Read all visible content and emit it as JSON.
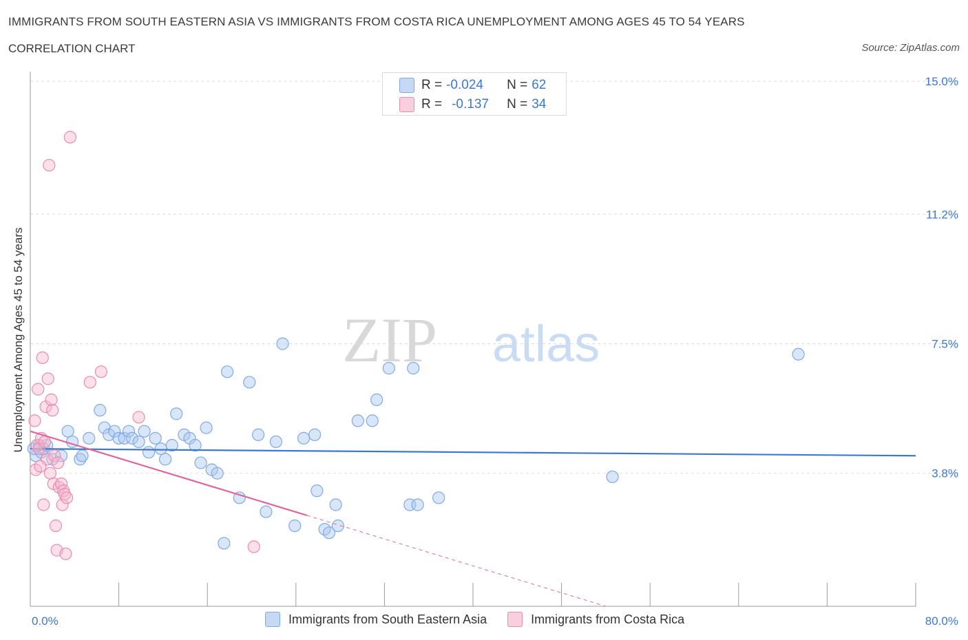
{
  "header": {
    "title": "IMMIGRANTS FROM SOUTH EASTERN ASIA VS IMMIGRANTS FROM COSTA RICA UNEMPLOYMENT AMONG AGES 45 TO 54 YEARS",
    "subtitle": "CORRELATION CHART",
    "source": "Source: ZipAtlas.com"
  },
  "legend": {
    "r_label": "R =",
    "n_label": "N =",
    "blue": {
      "r": "-0.024",
      "n": "62"
    },
    "pink": {
      "r": "-0.137",
      "n": "34"
    }
  },
  "watermark": {
    "zip": "ZIP",
    "atlas": "atlas"
  },
  "colors": {
    "blue": "#3b78d0",
    "blue_fill": "#c5d9f5",
    "pink": "#e0669a",
    "pink_fill": "#f9cfdd",
    "grid": "#dddddd"
  },
  "chart_data": {
    "type": "scatter",
    "title": "IMMIGRANTS FROM SOUTH EASTERN ASIA VS IMMIGRANTS FROM COSTA RICA UNEMPLOYMENT AMONG AGES 45 TO 54 YEARS",
    "xlabel": "",
    "ylabel": "Unemployment Among Ages 45 to 54 years",
    "xlim": [
      0,
      80
    ],
    "ylim": [
      0,
      15
    ],
    "x_tick_labels": [
      "0.0%",
      "80.0%"
    ],
    "y_ticks": [
      {
        "value": 15.0,
        "label": "15.0%"
      },
      {
        "value": 11.2,
        "label": "11.2%"
      },
      {
        "value": 7.5,
        "label": "7.5%"
      },
      {
        "value": 3.8,
        "label": "3.8%"
      }
    ],
    "series": [
      {
        "name": "Immigrants from South Eastern Asia",
        "color": "blue",
        "r": -0.024,
        "n": 62,
        "trend": {
          "x": [
            0,
            80
          ],
          "y": [
            4.5,
            4.3
          ],
          "dashed_from": null
        },
        "points": [
          [
            0.5,
            4.3
          ],
          [
            0.8,
            4.6
          ],
          [
            1.0,
            4.4
          ],
          [
            1.2,
            4.5
          ],
          [
            1.5,
            4.6
          ],
          [
            2.0,
            4.2
          ],
          [
            2.8,
            4.3
          ],
          [
            3.4,
            5.0
          ],
          [
            3.8,
            4.7
          ],
          [
            4.5,
            4.2
          ],
          [
            4.7,
            4.3
          ],
          [
            5.3,
            4.8
          ],
          [
            6.3,
            5.6
          ],
          [
            6.7,
            5.1
          ],
          [
            7.1,
            4.9
          ],
          [
            7.6,
            5.0
          ],
          [
            8.0,
            4.8
          ],
          [
            8.5,
            4.8
          ],
          [
            8.9,
            5.0
          ],
          [
            9.2,
            4.8
          ],
          [
            9.8,
            4.7
          ],
          [
            10.3,
            5.0
          ],
          [
            10.7,
            4.4
          ],
          [
            11.3,
            4.8
          ],
          [
            11.8,
            4.5
          ],
          [
            12.2,
            4.2
          ],
          [
            12.8,
            4.6
          ],
          [
            13.2,
            5.5
          ],
          [
            13.9,
            4.9
          ],
          [
            14.4,
            4.8
          ],
          [
            14.9,
            4.6
          ],
          [
            15.4,
            4.1
          ],
          [
            15.9,
            5.1
          ],
          [
            16.4,
            3.9
          ],
          [
            16.9,
            3.8
          ],
          [
            17.5,
            1.8
          ],
          [
            17.8,
            6.7
          ],
          [
            18.9,
            3.1
          ],
          [
            19.8,
            6.4
          ],
          [
            20.6,
            4.9
          ],
          [
            21.3,
            2.7
          ],
          [
            22.2,
            4.7
          ],
          [
            22.8,
            7.5
          ],
          [
            23.9,
            2.3
          ],
          [
            24.7,
            4.8
          ],
          [
            25.7,
            4.9
          ],
          [
            25.9,
            3.3
          ],
          [
            26.6,
            2.2
          ],
          [
            27.0,
            2.1
          ],
          [
            27.6,
            2.9
          ],
          [
            27.8,
            2.3
          ],
          [
            29.6,
            5.3
          ],
          [
            30.9,
            5.3
          ],
          [
            31.3,
            5.9
          ],
          [
            32.4,
            6.8
          ],
          [
            34.3,
            2.9
          ],
          [
            34.6,
            6.8
          ],
          [
            35.0,
            2.9
          ],
          [
            36.9,
            3.1
          ],
          [
            52.6,
            3.7
          ],
          [
            69.4,
            7.2
          ],
          [
            0.3,
            4.5
          ]
        ]
      },
      {
        "name": "Immigrants from Costa Rica",
        "color": "pink",
        "r": -0.137,
        "n": 34,
        "trend": {
          "x": [
            0,
            52
          ],
          "y": [
            5.0,
            0.0
          ],
          "dashed_from": 25
        },
        "points": [
          [
            0.4,
            5.3
          ],
          [
            0.5,
            3.9
          ],
          [
            0.6,
            4.6
          ],
          [
            0.7,
            6.2
          ],
          [
            0.8,
            4.5
          ],
          [
            1.0,
            4.8
          ],
          [
            1.1,
            7.1
          ],
          [
            1.2,
            2.9
          ],
          [
            1.3,
            4.7
          ],
          [
            1.4,
            5.7
          ],
          [
            1.5,
            4.2
          ],
          [
            1.6,
            6.5
          ],
          [
            1.7,
            12.6
          ],
          [
            1.8,
            3.8
          ],
          [
            1.9,
            5.9
          ],
          [
            2.0,
            5.6
          ],
          [
            2.1,
            3.5
          ],
          [
            2.2,
            4.3
          ],
          [
            2.3,
            2.3
          ],
          [
            2.4,
            1.6
          ],
          [
            2.5,
            4.1
          ],
          [
            2.6,
            3.4
          ],
          [
            2.8,
            3.5
          ],
          [
            2.9,
            2.9
          ],
          [
            3.0,
            3.3
          ],
          [
            3.1,
            3.2
          ],
          [
            3.2,
            1.5
          ],
          [
            3.3,
            3.1
          ],
          [
            3.6,
            13.4
          ],
          [
            5.4,
            6.4
          ],
          [
            6.4,
            6.7
          ],
          [
            9.8,
            5.4
          ],
          [
            20.2,
            1.7
          ],
          [
            0.9,
            4.0
          ]
        ]
      }
    ]
  },
  "bottom_legend": {
    "blue": "Immigrants from South Eastern Asia",
    "pink": "Immigrants from Costa Rica"
  }
}
